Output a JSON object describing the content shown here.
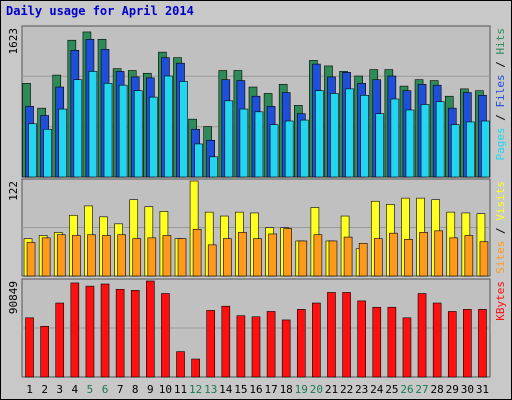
{
  "window": {
    "title": "Daily usage for April 2014"
  },
  "colors": {
    "background": "#c8c8c8",
    "panel": "#c0c0c0",
    "gridline": "#9a9a9a",
    "hits": "#2e8b57",
    "files": "#1f4fd8",
    "pages": "#22d6f0",
    "visits": "#ffff22",
    "sites": "#ff9a1a",
    "kbytes": "#ff1010",
    "title": "#0000cc",
    "weekend_tick": "#1a7a50",
    "weekday_tick": "#000000"
  },
  "chart_data": [
    {
      "type": "bar",
      "title": "Daily usage for April 2014",
      "categories": [
        "1",
        "2",
        "3",
        "4",
        "5",
        "6",
        "7",
        "8",
        "9",
        "10",
        "11",
        "12",
        "13",
        "14",
        "15",
        "16",
        "17",
        "18",
        "19",
        "20",
        "21",
        "22",
        "23",
        "24",
        "25",
        "26",
        "27",
        "28",
        "29",
        "30",
        "31"
      ],
      "weekend_days": [
        5,
        6,
        12,
        13,
        19,
        20,
        26,
        27
      ],
      "ymax": 1623,
      "ymax_label": "1623",
      "right_label": [
        "Pages",
        " / ",
        "Files",
        " / ",
        "Hits"
      ],
      "series": [
        {
          "name": "Hits",
          "values": [
            1020,
            750,
            1110,
            1490,
            1580,
            1500,
            1180,
            1160,
            1130,
            1360,
            1300,
            630,
            550,
            1160,
            1160,
            980,
            910,
            1010,
            780,
            1270,
            1210,
            1150,
            1100,
            1170,
            1170,
            990,
            1060,
            1050,
            880,
            960,
            940
          ]
        },
        {
          "name": "Files",
          "values": [
            770,
            670,
            980,
            1380,
            1500,
            1390,
            1150,
            1090,
            1080,
            1300,
            1240,
            520,
            400,
            1060,
            1050,
            880,
            770,
            920,
            690,
            1230,
            1090,
            1140,
            1020,
            1060,
            1100,
            940,
            1010,
            1000,
            750,
            920,
            890
          ]
        },
        {
          "name": "Pages",
          "values": [
            580,
            520,
            740,
            1060,
            1150,
            1020,
            1000,
            940,
            870,
            1100,
            1040,
            360,
            220,
            830,
            740,
            710,
            570,
            610,
            620,
            940,
            910,
            960,
            890,
            690,
            850,
            730,
            790,
            820,
            570,
            600,
            610
          ]
        }
      ]
    },
    {
      "type": "bar",
      "categories": [
        "1",
        "2",
        "3",
        "4",
        "5",
        "6",
        "7",
        "8",
        "9",
        "10",
        "11",
        "12",
        "13",
        "14",
        "15",
        "16",
        "17",
        "18",
        "19",
        "20",
        "21",
        "22",
        "23",
        "24",
        "25",
        "26",
        "27",
        "28",
        "29",
        "30",
        "31"
      ],
      "ymax": 122,
      "ymax_label": "122",
      "right_label": [
        "Sites",
        " / ",
        "Visits"
      ],
      "series": [
        {
          "name": "Visits",
          "values": [
            48,
            52,
            56,
            78,
            90,
            76,
            67,
            98,
            89,
            83,
            48,
            122,
            82,
            77,
            82,
            81,
            62,
            62,
            45,
            88,
            45,
            77,
            35,
            96,
            92,
            100,
            100,
            98,
            82,
            81,
            80
          ]
        },
        {
          "name": "Sites",
          "values": [
            43,
            49,
            53,
            52,
            53,
            52,
            53,
            48,
            49,
            52,
            48,
            60,
            40,
            48,
            56,
            48,
            54,
            61,
            45,
            53,
            45,
            50,
            42,
            48,
            55,
            47,
            56,
            58,
            49,
            52,
            44
          ]
        }
      ]
    },
    {
      "type": "bar",
      "categories": [
        "1",
        "2",
        "3",
        "4",
        "5",
        "6",
        "7",
        "8",
        "9",
        "10",
        "11",
        "12",
        "13",
        "14",
        "15",
        "16",
        "17",
        "18",
        "19",
        "20",
        "21",
        "22",
        "23",
        "24",
        "25",
        "26",
        "27",
        "28",
        "29",
        "30",
        "31"
      ],
      "ymax": 90849,
      "ymax_label": "90849",
      "right_label": [
        "KBytes"
      ],
      "series": [
        {
          "name": "KBytes",
          "values": [
            56000,
            48000,
            70000,
            89000,
            86000,
            88000,
            83000,
            82000,
            90849,
            79000,
            24000,
            17000,
            63000,
            67000,
            58000,
            57000,
            62000,
            54000,
            64000,
            70000,
            80000,
            80000,
            72000,
            66000,
            66000,
            56000,
            79000,
            70000,
            62000,
            64000,
            64000
          ]
        }
      ]
    }
  ]
}
